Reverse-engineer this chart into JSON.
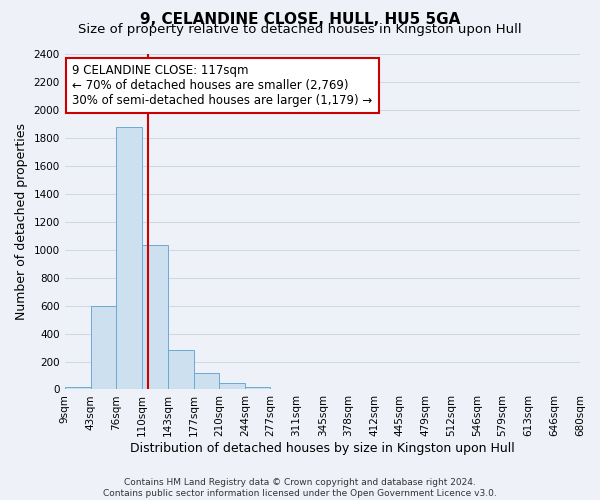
{
  "title": "9, CELANDINE CLOSE, HULL, HU5 5GA",
  "subtitle": "Size of property relative to detached houses in Kingston upon Hull",
  "xlabel": "Distribution of detached houses by size in Kingston upon Hull",
  "ylabel": "Number of detached properties",
  "bar_edges": [
    9,
    43,
    76,
    110,
    143,
    177,
    210,
    244,
    277,
    311,
    345,
    378,
    412,
    445,
    479,
    512,
    546,
    579,
    613,
    646,
    680
  ],
  "bar_heights": [
    20,
    600,
    1880,
    1035,
    280,
    115,
    45,
    20,
    0,
    0,
    0,
    0,
    0,
    0,
    0,
    0,
    0,
    0,
    0,
    0
  ],
  "bar_color": "#cde0f0",
  "bar_edge_color": "#6aaad4",
  "property_line_x": 117,
  "property_line_color": "#cc0000",
  "annotation_line1": "9 CELANDINE CLOSE: 117sqm",
  "annotation_line2": "← 70% of detached houses are smaller (2,769)",
  "annotation_line3": "30% of semi-detached houses are larger (1,179) →",
  "annotation_box_color": "#ffffff",
  "annotation_box_edge_color": "#cc0000",
  "ylim": [
    0,
    2400
  ],
  "yticks": [
    0,
    200,
    400,
    600,
    800,
    1000,
    1200,
    1400,
    1600,
    1800,
    2000,
    2200,
    2400
  ],
  "tick_labels": [
    "9sqm",
    "43sqm",
    "76sqm",
    "110sqm",
    "143sqm",
    "177sqm",
    "210sqm",
    "244sqm",
    "277sqm",
    "311sqm",
    "345sqm",
    "378sqm",
    "412sqm",
    "445sqm",
    "479sqm",
    "512sqm",
    "546sqm",
    "579sqm",
    "613sqm",
    "646sqm",
    "680sqm"
  ],
  "footer_text": "Contains HM Land Registry data © Crown copyright and database right 2024.\nContains public sector information licensed under the Open Government Licence v3.0.",
  "background_color": "#eef2f8",
  "grid_color": "#d0d8e8",
  "title_fontsize": 11,
  "subtitle_fontsize": 9.5,
  "axis_label_fontsize": 9,
  "tick_fontsize": 7.5,
  "annotation_fontsize": 8.5,
  "footer_fontsize": 6.5
}
